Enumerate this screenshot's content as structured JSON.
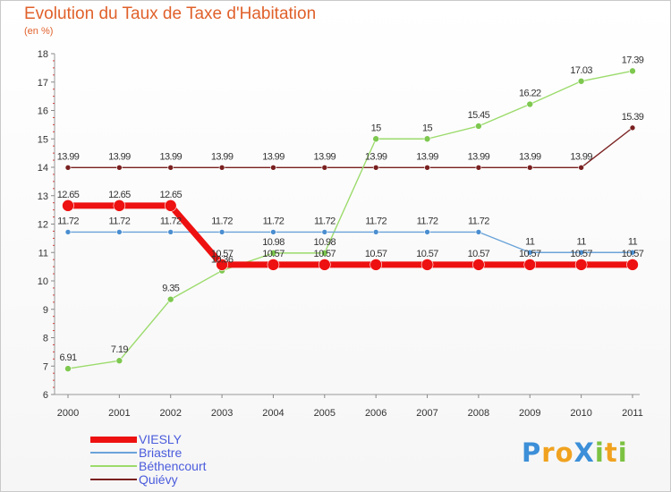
{
  "header": {
    "title": "Evolution du Taux de Taxe d'Habitation",
    "subtitle": "(en %)"
  },
  "chart_data": {
    "type": "line",
    "categories": [
      "2000",
      "2001",
      "2002",
      "2003",
      "2004",
      "2005",
      "2006",
      "2007",
      "2008",
      "2009",
      "2010",
      "2011"
    ],
    "ylim": [
      6,
      18
    ],
    "yticks": [
      6,
      7,
      8,
      9,
      10,
      11,
      12,
      13,
      14,
      15,
      16,
      17,
      18
    ],
    "grid": false,
    "legend_position": "bottom-left",
    "series": [
      {
        "name": "Quiévy",
        "color": "#7a2020",
        "width": 1.4,
        "marker": 3,
        "values": [
          13.99,
          13.99,
          13.99,
          13.99,
          13.99,
          13.99,
          13.99,
          13.99,
          13.99,
          13.99,
          13.99,
          15.39
        ],
        "labels": [
          "13.99",
          "13.99",
          "13.99",
          "13.99",
          "13.99",
          "13.99",
          "13.99",
          "13.99",
          "13.99",
          "13.99",
          "13.99",
          "15.39"
        ]
      },
      {
        "name": "Béthencourt",
        "color": "#9bdb6b",
        "dot": "#7ec850",
        "width": 1.4,
        "marker": 3.5,
        "values": [
          6.91,
          7.19,
          9.35,
          10.36,
          10.98,
          10.98,
          15,
          15,
          15.45,
          16.22,
          17.03,
          17.39
        ],
        "labels": [
          "6.91",
          "7.19",
          "9.35",
          "10.36",
          "10.98",
          "10.98",
          "15",
          "15",
          "15.45",
          "16.22",
          "17.03",
          "17.39"
        ]
      },
      {
        "name": "Briastre",
        "color": "#6aa3d9",
        "dot": "#4a8ed0",
        "width": 1.4,
        "marker": 3,
        "values": [
          11.72,
          11.72,
          11.72,
          11.72,
          11.72,
          11.72,
          11.72,
          11.72,
          11.72,
          11,
          11,
          11
        ],
        "labels": [
          "11.72",
          "11.72",
          "11.72",
          "11.72",
          "11.72",
          "11.72",
          "11.72",
          "11.72",
          "11.72",
          "11",
          "11",
          "11"
        ]
      },
      {
        "name": "VIESLY",
        "color": "#ee1111",
        "width": 7,
        "marker": 6.5,
        "values": [
          12.65,
          12.65,
          12.65,
          10.57,
          10.57,
          10.57,
          10.57,
          10.57,
          10.57,
          10.57,
          10.57,
          10.57
        ],
        "labels": [
          "12.65",
          "12.65",
          "12.65",
          "10.57",
          "10.57",
          "10.57",
          "10.57",
          "10.57",
          "10.57",
          "10.57",
          "10.57",
          "10.57"
        ]
      }
    ]
  },
  "legend": {
    "items": [
      {
        "label": "VIESLY",
        "color": "#ee1111",
        "thickness": 7
      },
      {
        "label": "Briastre",
        "color": "#6aa3d9",
        "thickness": 2
      },
      {
        "label": "Béthencourt",
        "color": "#9bdb6b",
        "thickness": 2
      },
      {
        "label": "Quiévy",
        "color": "#7a2020",
        "thickness": 2
      }
    ]
  },
  "logo": {
    "text": "ProXiti",
    "letters": [
      {
        "ch": "P",
        "color": "#3c8fd8"
      },
      {
        "ch": "r",
        "color": "#f0a21f"
      },
      {
        "ch": "o",
        "color": "#f0a21f"
      },
      {
        "ch": "X",
        "color": "#3c8fd8"
      },
      {
        "ch": "i",
        "color": "#7cc242"
      },
      {
        "ch": "t",
        "color": "#f0a21f"
      },
      {
        "ch": "i",
        "color": "#7cc242"
      }
    ]
  }
}
